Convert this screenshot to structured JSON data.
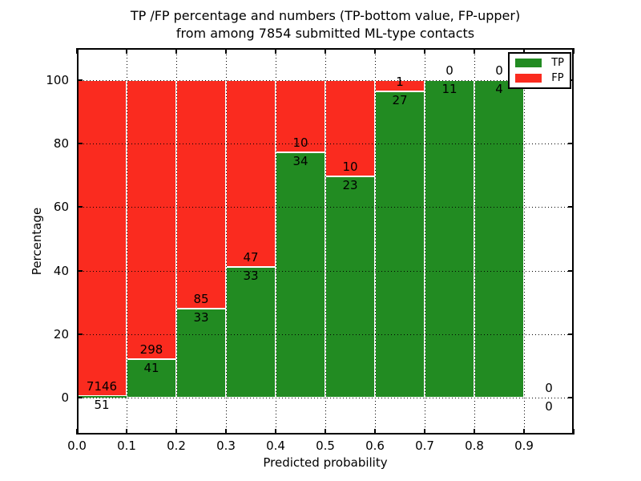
{
  "chart_data": {
    "type": "bar",
    "stacked": true,
    "title": "TP /FP percentage and numbers (TP-bottom value, FP-upper)\nfrom among 7854 submitted ML-type contacts",
    "title_lines": [
      "TP /FP percentage and numbers (TP-bottom value, FP-upper)",
      "from among 7854 submitted ML-type contacts"
    ],
    "xlabel": "Predicted probability",
    "ylabel": "Percentage",
    "total_contacts": 7854,
    "xlim": [
      0.0,
      1.0
    ],
    "ylim": [
      -11.5,
      110.0
    ],
    "bin_edges": [
      0.0,
      0.1,
      0.2,
      0.3,
      0.4,
      0.5,
      0.6,
      0.7,
      0.8,
      0.9,
      1.0
    ],
    "x_tick_labels": [
      "0.0",
      "0.1",
      "0.2",
      "0.3",
      "0.4",
      "0.5",
      "0.6",
      "0.7",
      "0.8",
      "0.9"
    ],
    "y_ticks": [
      0,
      20,
      40,
      60,
      80,
      100
    ],
    "y_tick_labels": [
      "0",
      "20",
      "40",
      "60",
      "80",
      "100"
    ],
    "grid": true,
    "series": [
      {
        "name": "TP",
        "color": "#228B22",
        "counts": [
          51,
          41,
          33,
          33,
          34,
          23,
          27,
          11,
          4,
          0
        ],
        "pct": [
          0.71,
          12.09,
          27.97,
          41.25,
          77.27,
          69.7,
          96.43,
          100.0,
          100.0,
          0.0
        ]
      },
      {
        "name": "FP",
        "color": "#FA2B1F",
        "counts": [
          7146,
          298,
          85,
          47,
          10,
          10,
          1,
          0,
          0,
          0
        ],
        "pct": [
          99.29,
          87.91,
          72.03,
          58.75,
          22.73,
          30.3,
          3.57,
          0.0,
          0.0,
          0.0
        ]
      }
    ],
    "legend": {
      "position": "upper right",
      "items": [
        {
          "label": "TP",
          "color": "#228B22"
        },
        {
          "label": "FP",
          "color": "#FA2B1F"
        }
      ]
    }
  }
}
